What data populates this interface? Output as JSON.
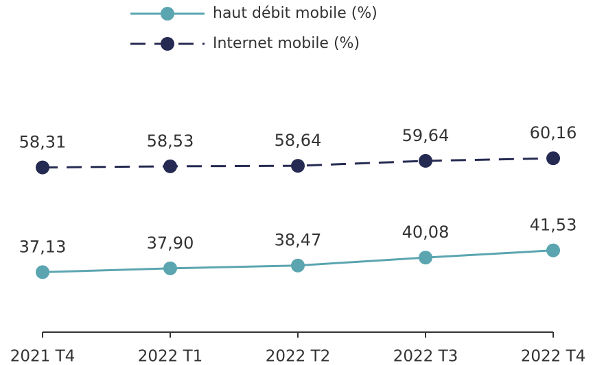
{
  "chart_data": {
    "type": "line",
    "categories": [
      "2021 T4",
      "2022 T1",
      "2022 T2",
      "2022 T3",
      "2022 T4"
    ],
    "series": [
      {
        "name": "haut débit mobile (%)",
        "color": "#5aa5b0",
        "style": "solid",
        "values": [
          37.13,
          37.9,
          38.47,
          40.08,
          41.53
        ],
        "value_labels": [
          "37,13",
          "37,90",
          "38,47",
          "40,08",
          "41,53"
        ]
      },
      {
        "name": "Internet mobile (%)",
        "color": "#252a52",
        "style": "dashed",
        "values": [
          58.31,
          58.53,
          58.64,
          59.64,
          60.16
        ],
        "value_labels": [
          "58,31",
          "58,53",
          "58,64",
          "59,64",
          "60,16"
        ]
      }
    ],
    "ylim": [
      25,
      75
    ],
    "legend": "top"
  }
}
